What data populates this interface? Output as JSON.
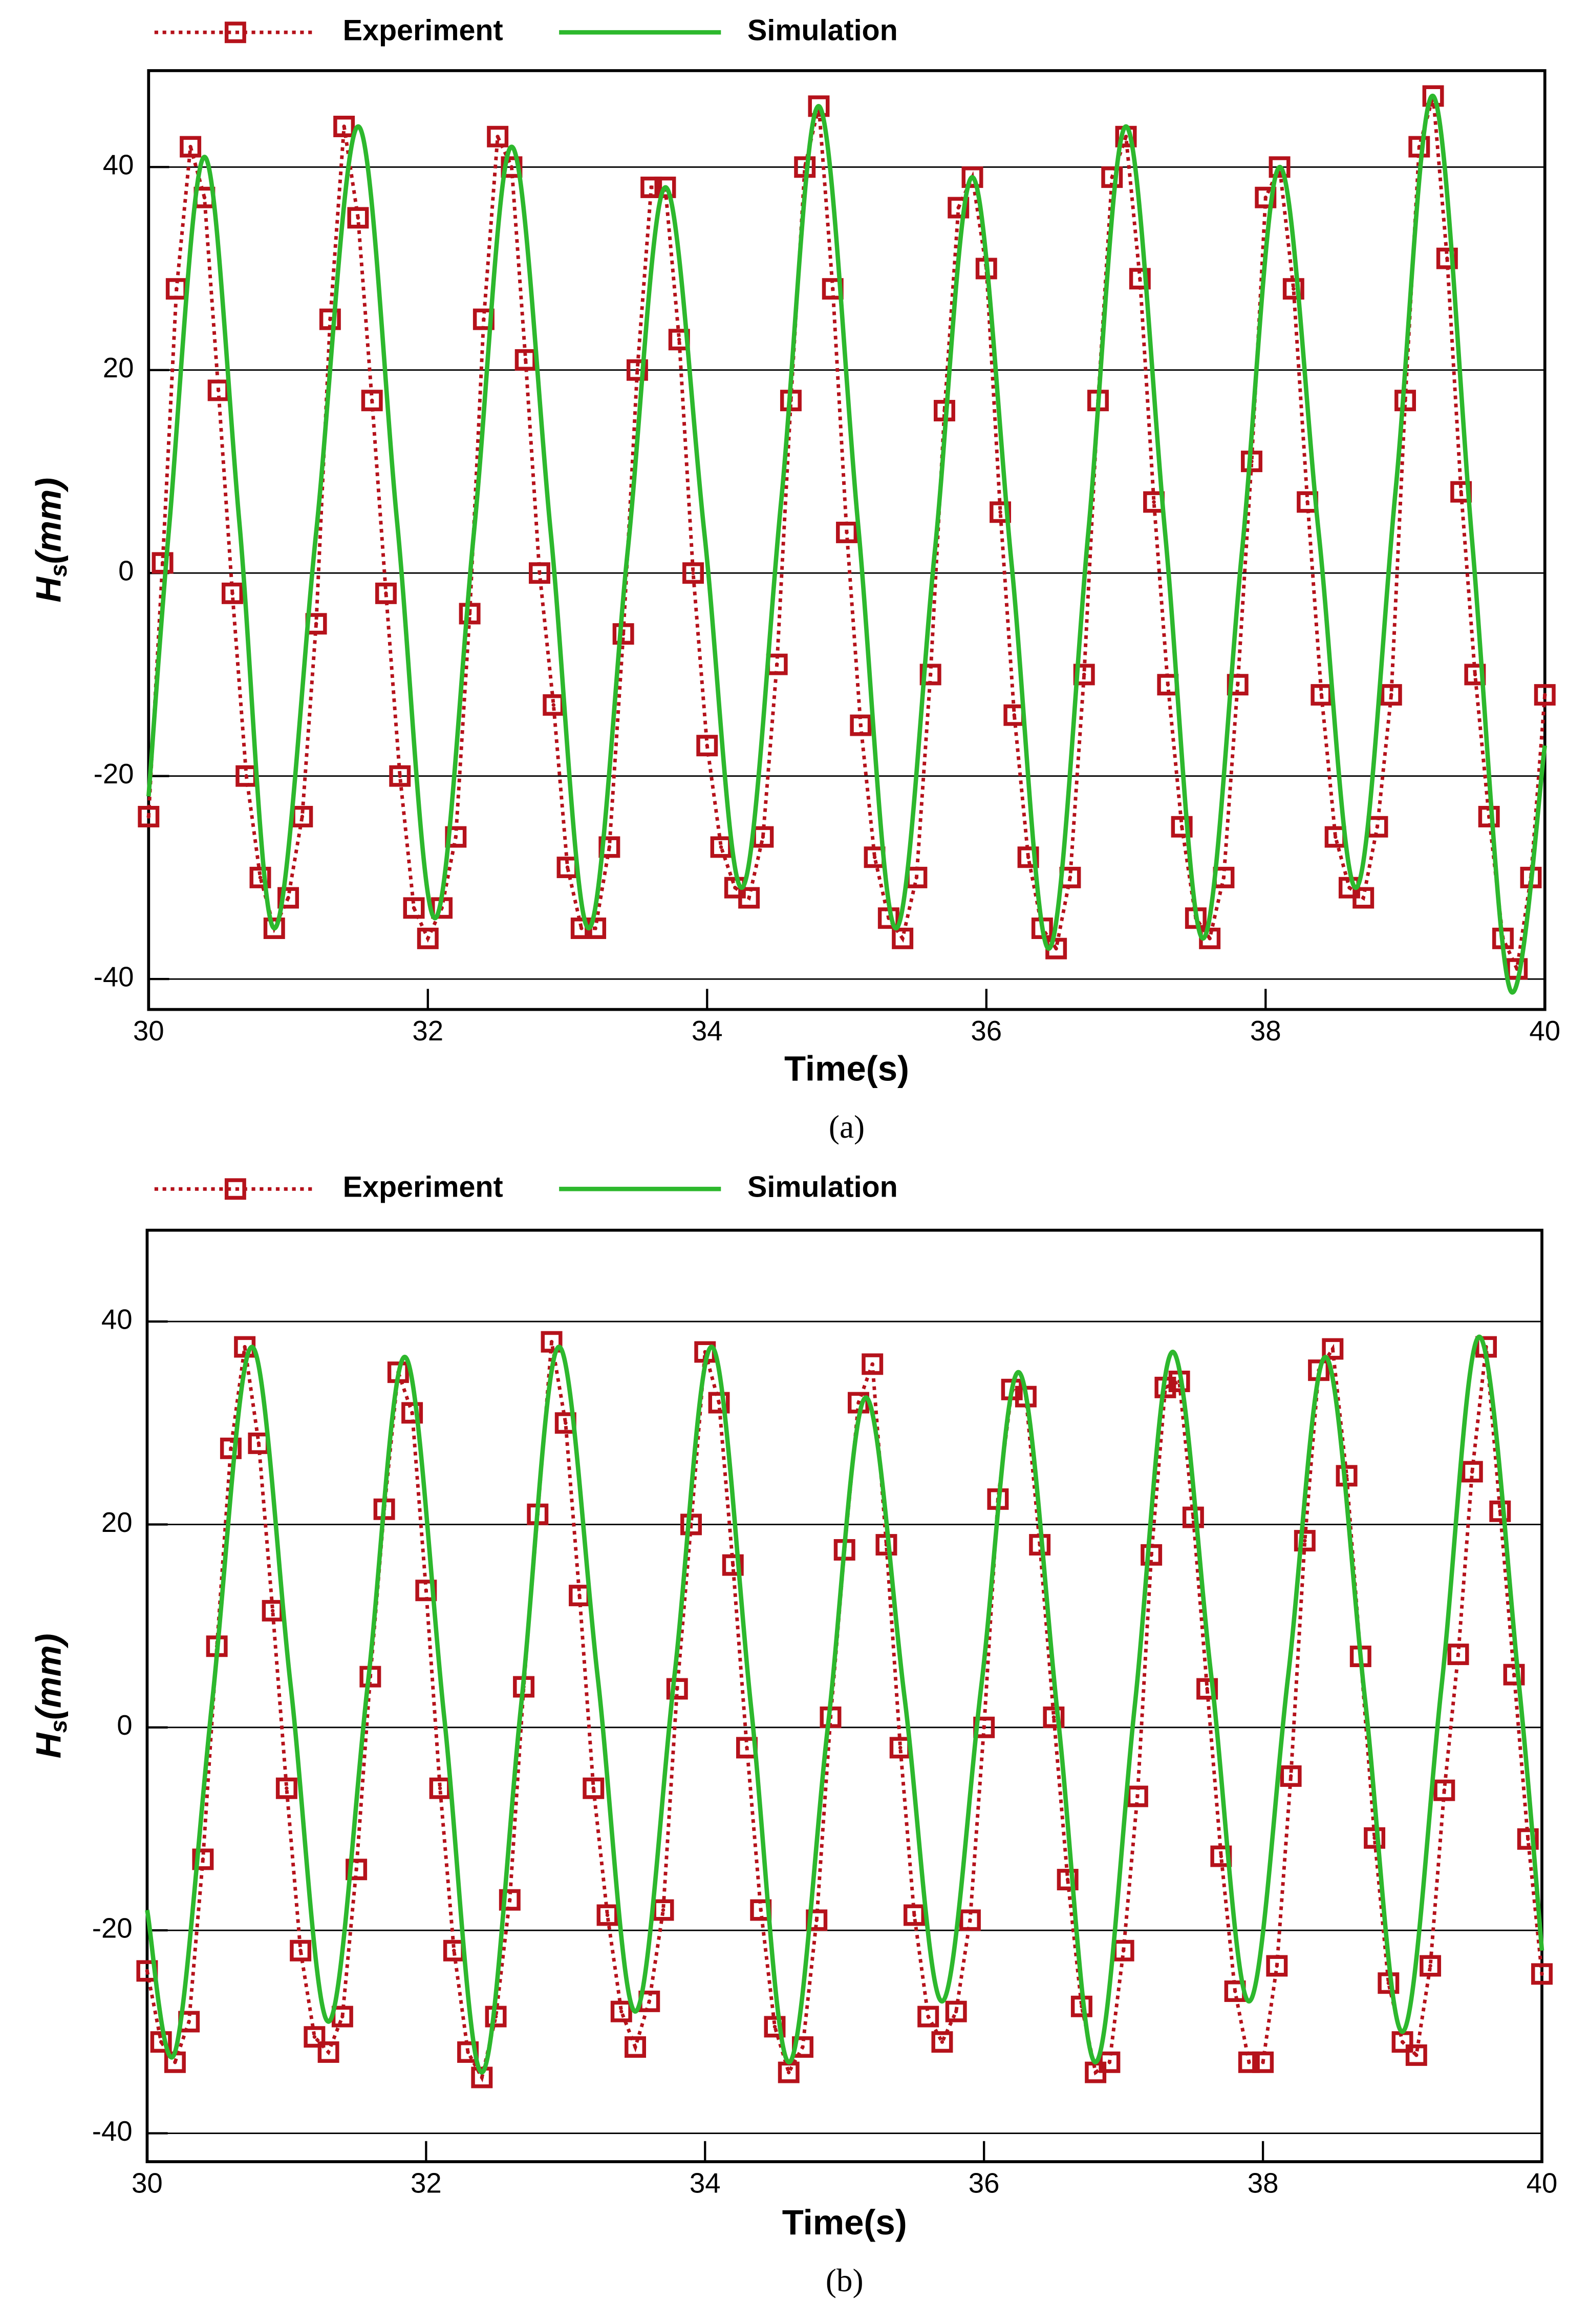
{
  "chart_data": [
    {
      "type": "line",
      "caption": "(a)",
      "xlabel": "Time(s)",
      "ylabel_parts": [
        "H",
        "s",
        "(mm)"
      ],
      "xlim": [
        30,
        40
      ],
      "ylim": [
        -43,
        49.5
      ],
      "xticks": [
        30,
        32,
        34,
        36,
        38,
        40
      ],
      "yticks": [
        -40,
        -20,
        0,
        20,
        40
      ],
      "grid": true,
      "series": [
        {
          "name": "Experiment",
          "color": "#b5121b",
          "marker": "square",
          "style": "dotted",
          "x": [
            30,
            30.1,
            30.2,
            30.3,
            30.4,
            30.5,
            30.6,
            30.7,
            30.8,
            30.9,
            31,
            31.1,
            31.2,
            31.3,
            31.4,
            31.5,
            31.6,
            31.7,
            31.8,
            31.9,
            32,
            32.1,
            32.2,
            32.3,
            32.4,
            32.5,
            32.6,
            32.7,
            32.8,
            32.9,
            33,
            33.1,
            33.2,
            33.3,
            33.4,
            33.5,
            33.6,
            33.7,
            33.8,
            33.9,
            34,
            34.1,
            34.2,
            34.3,
            34.4,
            34.5,
            34.6,
            34.7,
            34.8,
            34.9,
            35,
            35.1,
            35.2,
            35.3,
            35.4,
            35.5,
            35.6,
            35.7,
            35.8,
            35.9,
            36,
            36.1,
            36.2,
            36.3,
            36.4,
            36.5,
            36.6,
            36.7,
            36.8,
            36.9,
            37,
            37.1,
            37.2,
            37.3,
            37.4,
            37.5,
            37.6,
            37.7,
            37.8,
            37.9,
            38,
            38.1,
            38.2,
            38.3,
            38.4,
            38.5,
            38.6,
            38.7,
            38.8,
            38.9,
            39,
            39.1,
            39.2,
            39.3,
            39.4,
            39.5,
            39.6,
            39.7,
            39.8,
            39.9,
            40
          ],
          "values": [
            -24,
            1,
            28,
            42,
            37,
            18,
            -2,
            -20,
            -30,
            -35,
            -32,
            -24,
            -5,
            25,
            44,
            35,
            17,
            -2,
            -20,
            -33,
            -36,
            -33,
            -26,
            -4,
            25,
            43,
            40,
            21,
            0,
            -13,
            -29,
            -35,
            -35,
            -27,
            -6,
            20,
            38,
            38,
            23,
            0,
            -17,
            -27,
            -31,
            -32,
            -26,
            -9,
            17,
            40,
            46,
            28,
            4,
            -15,
            -28,
            -34,
            -36,
            -30,
            -10,
            16,
            36,
            39,
            30,
            6,
            -14,
            -28,
            -35,
            -37,
            -30,
            -10,
            17,
            39,
            43,
            29,
            7,
            -11,
            -25,
            -34,
            -36,
            -30,
            -11,
            11,
            37,
            40,
            28,
            7,
            -12,
            -26,
            -31,
            -32,
            -25,
            -12,
            17,
            42,
            47,
            31,
            8,
            -10,
            -24,
            -36,
            -39,
            -30,
            -12
          ]
        },
        {
          "name": "Simulation",
          "color": "#2db82d",
          "x": [
            30,
            30.15,
            30.4,
            30.65,
            30.9,
            31.2,
            31.5,
            31.78,
            32.05,
            32.33,
            32.6,
            32.88,
            33.15,
            33.43,
            33.7,
            33.98,
            34.25,
            34.53,
            34.8,
            35.08,
            35.35,
            35.63,
            35.9,
            36.18,
            36.45,
            36.73,
            37,
            37.28,
            37.55,
            37.83,
            38.1,
            38.38,
            38.65,
            38.93,
            39.2,
            39.48,
            39.75,
            40
          ],
          "values": [
            -22,
            5,
            41,
            5,
            -35,
            4,
            44,
            5,
            -34,
            4,
            42,
            4,
            -35,
            2,
            38,
            4,
            -31,
            7,
            46,
            5,
            -35,
            2,
            39,
            1,
            -37,
            4,
            44,
            4,
            -36,
            2,
            40,
            4,
            -31,
            8,
            47,
            3,
            -41,
            -17
          ]
        }
      ]
    },
    {
      "type": "line",
      "caption": "(b)",
      "xlabel": "Time(s)",
      "ylabel_parts": [
        "H",
        "s",
        "(mm)"
      ],
      "xlim": [
        30,
        40
      ],
      "ylim": [
        -42.8,
        49
      ],
      "xticks": [
        30,
        32,
        34,
        36,
        38,
        40
      ],
      "yticks": [
        -40,
        -20,
        0,
        20,
        40
      ],
      "grid": true,
      "series": [
        {
          "name": "Experiment",
          "color": "#b5121b",
          "marker": "square",
          "style": "dotted",
          "x": [
            30,
            30.1,
            30.2,
            30.3,
            30.4,
            30.5,
            30.6,
            30.7,
            30.8,
            30.9,
            31,
            31.1,
            31.2,
            31.3,
            31.4,
            31.5,
            31.6,
            31.7,
            31.8,
            31.9,
            32,
            32.1,
            32.2,
            32.3,
            32.4,
            32.5,
            32.6,
            32.7,
            32.8,
            32.9,
            33,
            33.1,
            33.2,
            33.3,
            33.4,
            33.5,
            33.6,
            33.7,
            33.8,
            33.9,
            34,
            34.1,
            34.2,
            34.3,
            34.4,
            34.5,
            34.6,
            34.7,
            34.8,
            34.9,
            35,
            35.1,
            35.2,
            35.3,
            35.4,
            35.5,
            35.6,
            35.7,
            35.8,
            35.9,
            36,
            36.1,
            36.2,
            36.3,
            36.4,
            36.5,
            36.6,
            36.7,
            36.8,
            36.9,
            37,
            37.1,
            37.2,
            37.3,
            37.4,
            37.5,
            37.6,
            37.7,
            37.8,
            37.9,
            38,
            38.1,
            38.2,
            38.3,
            38.4,
            38.5,
            38.6,
            38.7,
            38.8,
            38.9,
            39,
            39.1,
            39.2,
            39.3,
            39.4,
            39.5,
            39.6,
            39.7,
            39.8,
            39.9,
            40
          ],
          "values": [
            -24,
            -31,
            -33,
            -29,
            -13,
            8,
            27.5,
            37.5,
            28,
            11.5,
            -6,
            -22,
            -30.5,
            -32,
            -28.5,
            -14,
            5,
            21.5,
            35,
            31,
            13.5,
            -6,
            -22,
            -32,
            -34.5,
            -28.5,
            -17,
            4,
            21,
            38,
            30,
            13,
            -6,
            -18.5,
            -28,
            -31.5,
            -27,
            -18,
            3.8,
            20,
            37,
            32,
            16,
            -2,
            -18,
            -29.5,
            -34,
            -31.5,
            -19,
            1,
            17.5,
            32,
            35.8,
            18,
            -2,
            -18.5,
            -28.5,
            -31,
            -28,
            -19,
            0,
            22.5,
            33.3,
            32.6,
            18,
            1,
            -15,
            -27.5,
            -34,
            -33,
            -22,
            -6.8,
            17,
            33.5,
            34.1,
            20.7,
            3.8,
            -12.7,
            -26,
            -33,
            -33,
            -23.5,
            -4.8,
            18.4,
            35.2,
            37.3,
            24.8,
            7,
            -10.9,
            -25.2,
            -31,
            -32.3,
            -23.5,
            -6.2,
            7.2,
            25.2,
            37.5,
            21.3,
            5.2,
            -11,
            -24.3
          ]
        },
        {
          "name": "Simulation",
          "color": "#2db82d",
          "x": [
            30,
            30.2,
            30.47,
            30.75,
            31.03,
            31.3,
            31.58,
            31.85,
            32.13,
            32.4,
            32.68,
            32.95,
            33.23,
            33.5,
            33.78,
            34.05,
            34.33,
            34.6,
            34.88,
            35.15,
            35.43,
            35.7,
            35.98,
            36.25,
            36.53,
            36.8,
            37.08,
            37.35,
            37.63,
            37.9,
            38.18,
            38.45,
            38.73,
            39,
            39.28,
            39.55,
            39.83,
            40
          ],
          "values": [
            -18,
            -32,
            3,
            37.5,
            4,
            -29,
            4,
            36.5,
            1,
            -34,
            2,
            37.5,
            5,
            -28,
            5,
            37.5,
            2,
            -33,
            0,
            32.5,
            3,
            -27,
            4,
            35,
            1,
            -33,
            2,
            37,
            5,
            -27,
            5,
            36.5,
            3,
            -30,
            4,
            38.5,
            5,
            -22
          ]
        }
      ]
    }
  ]
}
